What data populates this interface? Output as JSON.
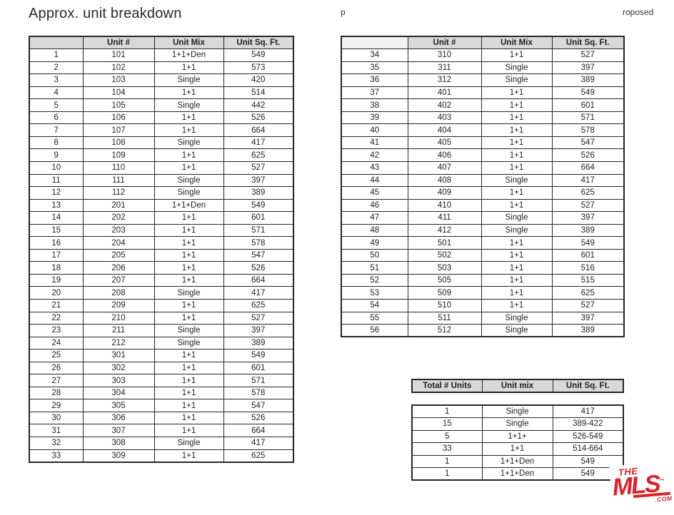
{
  "page": {
    "title": "Approx. unit breakdown",
    "fragment_center": "p",
    "fragment_right": "roposed"
  },
  "colors": {
    "header_bg": "#d9d9d9",
    "header_bg_light": "#f2f2f2",
    "table_border": "#262626",
    "text": "#1f1f1f",
    "logo_red": "#e02028",
    "page_bg": "#ffffff"
  },
  "left_table": {
    "headers": [
      "",
      "Unit #",
      "Unit Mix",
      "Unit Sq. Ft."
    ],
    "rows": [
      [
        "1",
        "101",
        "1+1+Den",
        "549"
      ],
      [
        "2",
        "102",
        "1+1",
        "573"
      ],
      [
        "3",
        "103",
        "Single",
        "420"
      ],
      [
        "4",
        "104",
        "1+1",
        "514"
      ],
      [
        "5",
        "105",
        "Single",
        "442"
      ],
      [
        "6",
        "106",
        "1+1",
        "526"
      ],
      [
        "7",
        "107",
        "1+1",
        "664"
      ],
      [
        "8",
        "108",
        "Single",
        "417"
      ],
      [
        "9",
        "109",
        "1+1",
        "625"
      ],
      [
        "10",
        "110",
        "1+1",
        "527"
      ],
      [
        "11",
        "111",
        "Single",
        "397"
      ],
      [
        "12",
        "112",
        "Single",
        "389"
      ],
      [
        "13",
        "201",
        "1+1+Den",
        "549"
      ],
      [
        "14",
        "202",
        "1+1",
        "601"
      ],
      [
        "15",
        "203",
        "1+1",
        "571"
      ],
      [
        "16",
        "204",
        "1+1",
        "578"
      ],
      [
        "17",
        "205",
        "1+1",
        "547"
      ],
      [
        "18",
        "206",
        "1+1",
        "526"
      ],
      [
        "19",
        "207",
        "1+1",
        "664"
      ],
      [
        "20",
        "208",
        "Single",
        "417"
      ],
      [
        "21",
        "209",
        "1+1",
        "625"
      ],
      [
        "22",
        "210",
        "1+1",
        "527"
      ],
      [
        "23",
        "211",
        "Single",
        "397"
      ],
      [
        "24",
        "212",
        "Single",
        "389"
      ],
      [
        "25",
        "301",
        "1+1",
        "549"
      ],
      [
        "26",
        "302",
        "1+1",
        "601"
      ],
      [
        "27",
        "303",
        "1+1",
        "571"
      ],
      [
        "28",
        "304",
        "1+1",
        "578"
      ],
      [
        "29",
        "305",
        "1+1",
        "547"
      ],
      [
        "30",
        "306",
        "1+1",
        "526"
      ],
      [
        "31",
        "307",
        "1+1",
        "664"
      ],
      [
        "32",
        "308",
        "Single",
        "417"
      ],
      [
        "33",
        "309",
        "1+1",
        "625"
      ]
    ]
  },
  "right_table": {
    "headers": [
      "",
      "Unit #",
      "Unit Mix",
      "Unit Sq. Ft."
    ],
    "rows": [
      [
        "34",
        "310",
        "1+1",
        "527"
      ],
      [
        "35",
        "311",
        "Single",
        "397"
      ],
      [
        "36",
        "312",
        "Single",
        "389"
      ],
      [
        "37",
        "401",
        "1+1",
        "549"
      ],
      [
        "38",
        "402",
        "1+1",
        "601"
      ],
      [
        "39",
        "403",
        "1+1",
        "571"
      ],
      [
        "40",
        "404",
        "1+1",
        "578"
      ],
      [
        "41",
        "405",
        "1+1",
        "547"
      ],
      [
        "42",
        "406",
        "1+1",
        "526"
      ],
      [
        "43",
        "407",
        "1+1",
        "664"
      ],
      [
        "44",
        "408",
        "Single",
        "417"
      ],
      [
        "45",
        "409",
        "1+1",
        "625"
      ],
      [
        "46",
        "410",
        "1+1",
        "527"
      ],
      [
        "47",
        "411",
        "Single",
        "397"
      ],
      [
        "48",
        "412",
        "Single",
        "389"
      ],
      [
        "49",
        "501",
        "1+1",
        "549"
      ],
      [
        "50",
        "502",
        "1+1",
        "601"
      ],
      [
        "51",
        "503",
        "1+1",
        "516"
      ],
      [
        "52",
        "505",
        "1+1",
        "515"
      ],
      [
        "53",
        "509",
        "1+1",
        "625"
      ],
      [
        "54",
        "510",
        "1+1",
        "527"
      ],
      [
        "55",
        "511",
        "Single",
        "397"
      ],
      [
        "56",
        "512",
        "Single",
        "389"
      ]
    ]
  },
  "summary_table": {
    "headers": [
      "Total # Units",
      "Unit mix",
      "Unit Sq. Ft."
    ],
    "rows": [
      [
        "1",
        "Single",
        "417"
      ],
      [
        "15",
        "Single",
        "389-422"
      ],
      [
        "5",
        "1+1+",
        "526-549"
      ],
      [
        "33",
        "1+1",
        "514-664"
      ],
      [
        "1",
        "1+1+Den",
        "549"
      ],
      [
        "1",
        "1+1+Den",
        "549"
      ]
    ]
  },
  "logo": {
    "the": "THE",
    "mls": "MLS",
    "tm": "™",
    "com": ".COM"
  }
}
